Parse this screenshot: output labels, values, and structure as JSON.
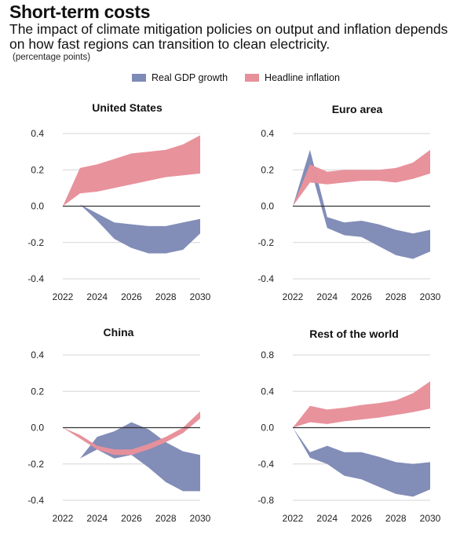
{
  "header": {
    "title": "Short-term costs",
    "subtitle": "The impact of climate mitigation policies on output and inflation depends on how fast regions can transition to clean electricity.",
    "units": "(percentage points)"
  },
  "legend": {
    "gdp_label": "Real GDP growth",
    "inflation_label": "Headline inflation",
    "gdp_color": "#7f8bb7",
    "inflation_color": "#e8909a"
  },
  "chart_data": [
    {
      "type": "area",
      "title": "United States",
      "x": [
        2022,
        2023,
        2024,
        2025,
        2026,
        2027,
        2028,
        2029,
        2030
      ],
      "xticks": [
        "2022",
        "2024",
        "2026",
        "2028",
        "2030"
      ],
      "yticks": [
        "0.4",
        "0.2",
        "0.0",
        "-0.2",
        "-0.4"
      ],
      "ylim": [
        -0.4,
        0.4
      ],
      "series": [
        {
          "name": "Real GDP growth",
          "lower": [
            0.0,
            0.01,
            -0.08,
            -0.18,
            -0.23,
            -0.26,
            -0.26,
            -0.24,
            -0.15
          ],
          "upper": [
            0.0,
            0.01,
            -0.04,
            -0.09,
            -0.1,
            -0.11,
            -0.11,
            -0.09,
            -0.07
          ]
        },
        {
          "name": "Headline inflation",
          "lower": [
            0.0,
            0.07,
            0.08,
            0.1,
            0.12,
            0.14,
            0.16,
            0.17,
            0.18
          ],
          "upper": [
            0.0,
            0.21,
            0.23,
            0.26,
            0.29,
            0.3,
            0.31,
            0.34,
            0.39
          ]
        }
      ]
    },
    {
      "type": "area",
      "title": "Euro area",
      "x": [
        2022,
        2023,
        2024,
        2025,
        2026,
        2027,
        2028,
        2029,
        2030
      ],
      "xticks": [
        "2022",
        "2024",
        "2026",
        "2028",
        "2030"
      ],
      "yticks": [
        "0.4",
        "0.2",
        "0.0",
        "-0.2",
        "-0.4"
      ],
      "ylim": [
        -0.4,
        0.4
      ],
      "series": [
        {
          "name": "Real GDP growth",
          "lower": [
            0.0,
            0.22,
            -0.12,
            -0.16,
            -0.17,
            -0.22,
            -0.27,
            -0.29,
            -0.25
          ],
          "upper": [
            0.0,
            0.31,
            -0.06,
            -0.09,
            -0.08,
            -0.1,
            -0.13,
            -0.15,
            -0.13
          ]
        },
        {
          "name": "Headline inflation",
          "lower": [
            0.0,
            0.13,
            0.12,
            0.13,
            0.14,
            0.14,
            0.13,
            0.15,
            0.18
          ],
          "upper": [
            0.0,
            0.23,
            0.19,
            0.2,
            0.2,
            0.2,
            0.21,
            0.24,
            0.31
          ]
        }
      ]
    },
    {
      "type": "area",
      "title": "China",
      "x": [
        2022,
        2023,
        2024,
        2025,
        2026,
        2027,
        2028,
        2029,
        2030
      ],
      "xticks": [
        "2022",
        "2024",
        "2026",
        "2028",
        "2030"
      ],
      "yticks": [
        "0.4",
        "0.2",
        "0.0",
        "-0.2",
        "-0.4"
      ],
      "ylim": [
        -0.4,
        0.4
      ],
      "series": [
        {
          "name": "Real GDP growth",
          "lower": [
            0.0,
            -0.17,
            -0.12,
            -0.17,
            -0.15,
            -0.22,
            -0.3,
            -0.35,
            -0.35
          ],
          "upper": [
            0.0,
            -0.17,
            -0.05,
            -0.02,
            0.03,
            -0.01,
            -0.08,
            -0.13,
            -0.15
          ]
        },
        {
          "name": "Headline inflation",
          "lower": [
            0.0,
            -0.06,
            -0.12,
            -0.15,
            -0.15,
            -0.12,
            -0.08,
            -0.03,
            0.05
          ],
          "upper": [
            0.0,
            -0.04,
            -0.1,
            -0.12,
            -0.12,
            -0.09,
            -0.05,
            0.0,
            0.09
          ]
        }
      ]
    },
    {
      "type": "area",
      "title": "Rest of the world",
      "x": [
        2022,
        2023,
        2024,
        2025,
        2026,
        2027,
        2028,
        2029,
        2030
      ],
      "xticks": [
        "2022",
        "2024",
        "2026",
        "2028",
        "2030"
      ],
      "yticks": [
        "0.8",
        "0.4",
        "0.0",
        "-0.4",
        "-0.8"
      ],
      "ylim": [
        -0.8,
        0.8
      ],
      "series": [
        {
          "name": "Real GDP growth",
          "lower": [
            0.0,
            -0.33,
            -0.4,
            -0.53,
            -0.57,
            -0.65,
            -0.73,
            -0.76,
            -0.68
          ],
          "upper": [
            0.0,
            -0.27,
            -0.2,
            -0.27,
            -0.27,
            -0.32,
            -0.38,
            -0.4,
            -0.38
          ]
        },
        {
          "name": "Headline inflation",
          "lower": [
            0.0,
            0.06,
            0.04,
            0.07,
            0.09,
            0.11,
            0.14,
            0.17,
            0.21
          ],
          "upper": [
            0.0,
            0.24,
            0.2,
            0.22,
            0.25,
            0.27,
            0.3,
            0.38,
            0.51
          ]
        }
      ]
    }
  ]
}
